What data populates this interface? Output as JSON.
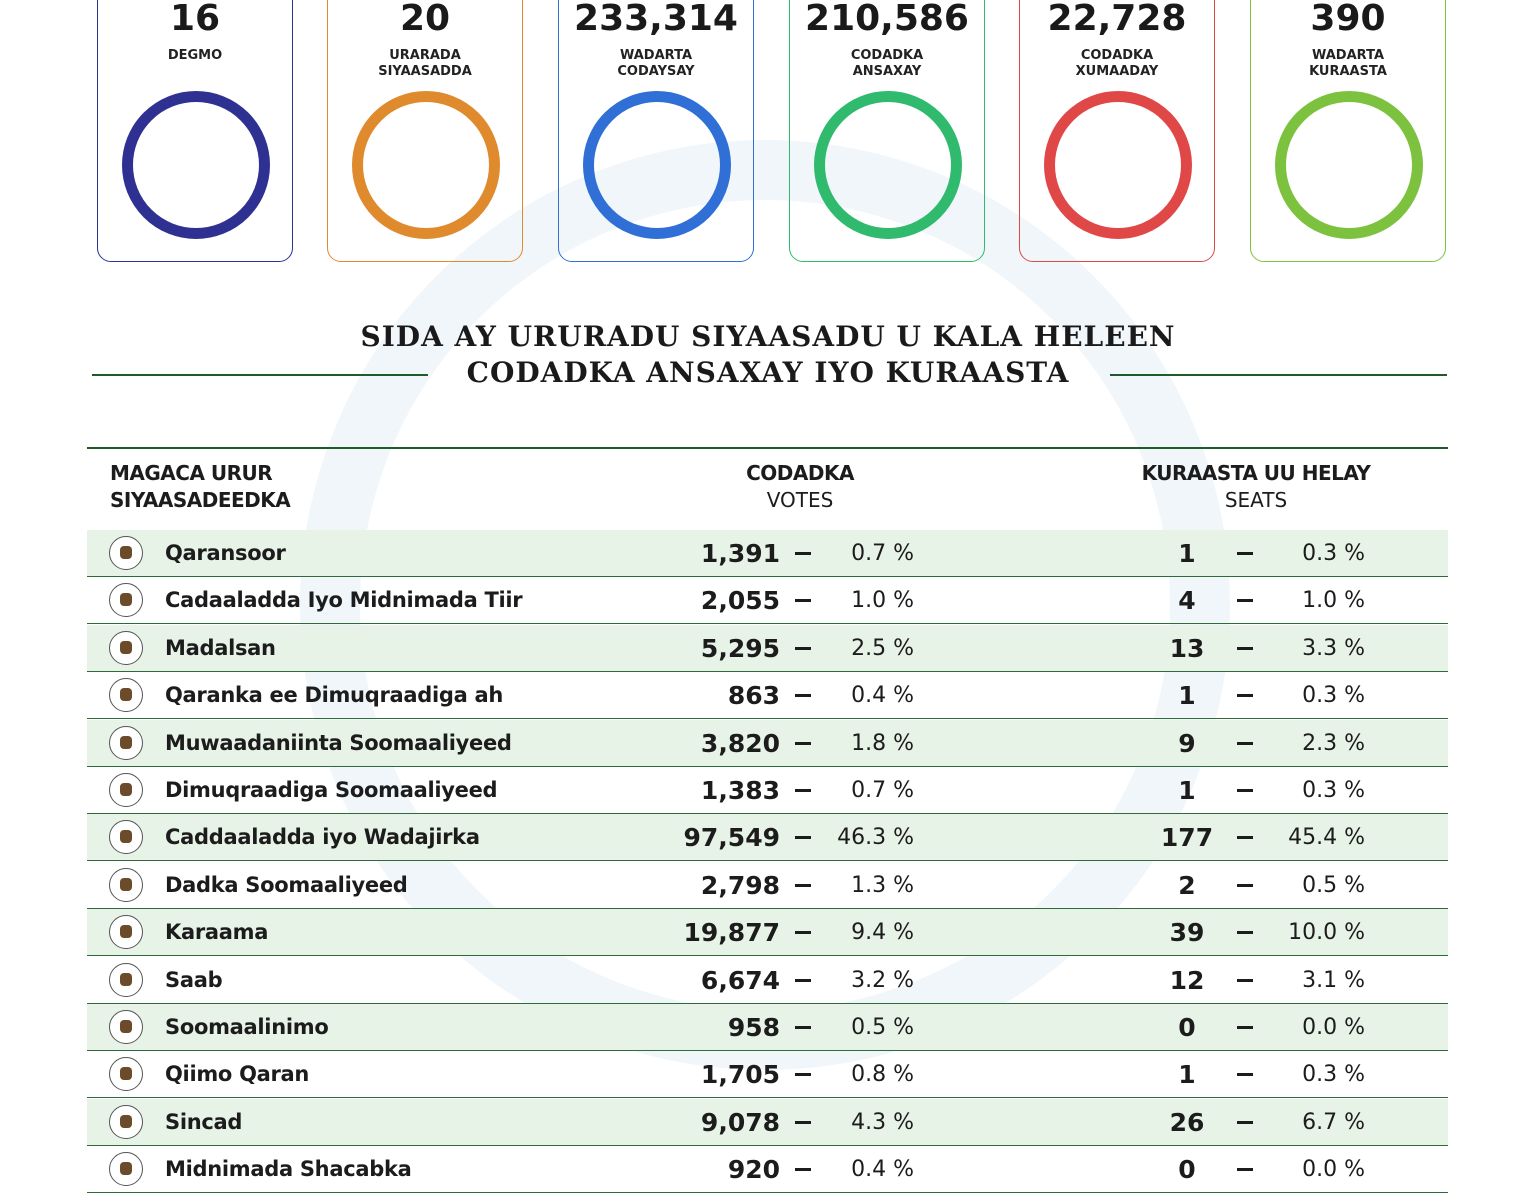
{
  "stats": [
    {
      "value": "16",
      "label": [
        "DEGMO"
      ],
      "color": "#2e3192"
    },
    {
      "value": "20",
      "label": [
        "URARADA",
        "SIYAASADDA"
      ],
      "color": "#e08a2e"
    },
    {
      "value": "233,314",
      "label": [
        "WADARTA",
        "CODAYSAY"
      ],
      "color": "#2f6fd6"
    },
    {
      "value": "210,586",
      "label": [
        "CODADKA",
        "ANSAXAY"
      ],
      "color": "#2fba6e"
    },
    {
      "value": "22,728",
      "label": [
        "CODADKA",
        "XUMAADAY"
      ],
      "color": "#e04848"
    },
    {
      "value": "390",
      "label": [
        "WADARTA",
        "KURAASTA"
      ],
      "color": "#7cc23f"
    }
  ],
  "title": [
    "SIDA AY URURADU SIYAASADU U KALA HELEEN",
    "CODADKA ANSAXAY IYO KURAASTA"
  ],
  "table": {
    "header": {
      "party": [
        "MAGACA URUR",
        "SIYAASADEEDKA"
      ],
      "votes": [
        "CODADKA",
        "VOTES"
      ],
      "seats": [
        "KURAASTA UU HELAY",
        "SEATS"
      ]
    },
    "rows": [
      [
        "Qaransoor",
        "1,391",
        "0.7 %",
        "1",
        "0.3 %"
      ],
      [
        "Cadaaladda Iyo Midnimada Tiir",
        "2,055",
        "1.0 %",
        "4",
        "1.0 %"
      ],
      [
        "Madalsan",
        "5,295",
        "2.5 %",
        "13",
        "3.3 %"
      ],
      [
        "Qaranka ee Dimuqraadiga ah",
        "863",
        "0.4 %",
        "1",
        "0.3 %"
      ],
      [
        "Muwaadaniinta Soomaaliyeed",
        "3,820",
        "1.8 %",
        "9",
        "2.3 %"
      ],
      [
        "Dimuqraadiga Soomaaliyeed",
        "1,383",
        "0.7 %",
        "1",
        "0.3 %"
      ],
      [
        "Caddaaladda iyo Wadajirka",
        "97,549",
        "46.3 %",
        "177",
        "45.4 %"
      ],
      [
        "Dadka Soomaaliyeed",
        "2,798",
        "1.3 %",
        "2",
        "0.5 %"
      ],
      [
        "Karaama",
        "19,877",
        "9.4 %",
        "39",
        "10.0 %"
      ],
      [
        "Saab",
        "6,674",
        "3.2 %",
        "12",
        "3.1 %"
      ],
      [
        "Soomaalinimo",
        "958",
        "0.5 %",
        "0",
        "0.0 %"
      ],
      [
        "Qiimo Qaran",
        "1,705",
        "0.8 %",
        "1",
        "0.3 %"
      ],
      [
        "Sincad",
        "9,078",
        "4.3 %",
        "26",
        "6.7 %"
      ],
      [
        "Midnimada Shacabka",
        "920",
        "0.4 %",
        "0",
        "0.0 %"
      ]
    ]
  }
}
